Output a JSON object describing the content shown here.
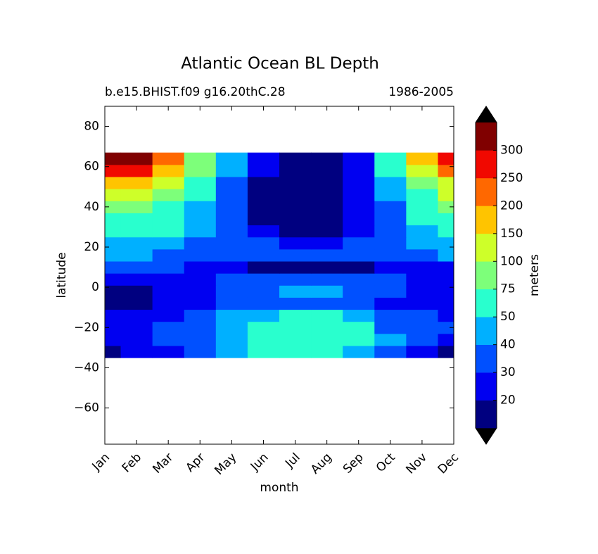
{
  "chart_data": {
    "type": "contour",
    "title": "Atlantic Ocean BL Depth",
    "subtitle_left": "b.e15.BHIST.f09 g16.20thC.28",
    "subtitle_right": "1986-2005",
    "x_label": "month",
    "y_label": "latitude",
    "colorbar_label": "meters",
    "categories": [
      "Jan",
      "Feb",
      "Mar",
      "Apr",
      "May",
      "Jun",
      "Jul",
      "Aug",
      "Sep",
      "Oct",
      "Nov",
      "Dec"
    ],
    "y": [
      -32,
      -26,
      -20,
      -14,
      -8,
      -2,
      4,
      10,
      16,
      22,
      28,
      34,
      40,
      46,
      52,
      58,
      64
    ],
    "z": [
      [
        18,
        22,
        28,
        35,
        42,
        50,
        55,
        55,
        48,
        38,
        28,
        18
      ],
      [
        25,
        28,
        30,
        38,
        45,
        55,
        60,
        60,
        52,
        40,
        32,
        25
      ],
      [
        28,
        28,
        30,
        35,
        42,
        52,
        58,
        58,
        50,
        38,
        32,
        30
      ],
      [
        25,
        25,
        28,
        32,
        40,
        48,
        55,
        55,
        48,
        35,
        30,
        28
      ],
      [
        18,
        18,
        22,
        25,
        30,
        35,
        38,
        38,
        32,
        25,
        22,
        20
      ],
      [
        18,
        18,
        22,
        28,
        32,
        35,
        45,
        45,
        38,
        30,
        25,
        20
      ],
      [
        25,
        22,
        25,
        28,
        32,
        35,
        38,
        38,
        35,
        30,
        25,
        22
      ],
      [
        35,
        32,
        30,
        28,
        25,
        18,
        15,
        15,
        18,
        22,
        25,
        28
      ],
      [
        42,
        40,
        36,
        34,
        32,
        30,
        30,
        30,
        32,
        34,
        38,
        40
      ],
      [
        45,
        45,
        42,
        38,
        32,
        30,
        28,
        28,
        32,
        35,
        42,
        45
      ],
      [
        52,
        52,
        50,
        40,
        32,
        25,
        18,
        18,
        28,
        35,
        45,
        52
      ],
      [
        60,
        60,
        55,
        42,
        30,
        17,
        14,
        14,
        25,
        35,
        50,
        60
      ],
      [
        85,
        85,
        65,
        45,
        30,
        18,
        14,
        14,
        22,
        38,
        60,
        80
      ],
      [
        110,
        110,
        80,
        50,
        30,
        18,
        15,
        15,
        22,
        40,
        70,
        100
      ],
      [
        150,
        160,
        120,
        60,
        35,
        18,
        15,
        15,
        25,
        45,
        90,
        130
      ],
      [
        260,
        270,
        180,
        90,
        45,
        20,
        15,
        15,
        25,
        55,
        120,
        220
      ],
      [
        320,
        320,
        200,
        80,
        40,
        20,
        15,
        15,
        25,
        60,
        150,
        280
      ]
    ],
    "levels": [
      20,
      30,
      40,
      50,
      75,
      100,
      150,
      200,
      250,
      300
    ],
    "colors": [
      "#000080",
      "#0000f1",
      "#0050ff",
      "#00b0ff",
      "#29ffce",
      "#7dff7a",
      "#ceff29",
      "#ffc400",
      "#ff6800",
      "#f10800",
      "#800000"
    ],
    "extend_color": "#000000",
    "ylim": [
      -78,
      90
    ],
    "yticks": [
      {
        "value": -60,
        "label": "−60"
      },
      {
        "value": -40,
        "label": "−40"
      },
      {
        "value": -20,
        "label": "−20"
      },
      0,
      20,
      40,
      60,
      80
    ]
  }
}
